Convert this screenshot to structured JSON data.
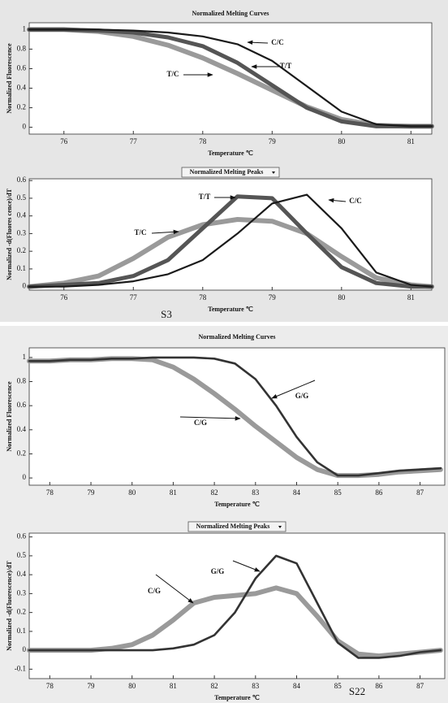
{
  "chart_data": [
    {
      "type": "line",
      "title": "Normalized Melting Curves",
      "xlabel": "Temperature ℃",
      "ylabel": "Normalized Fluorescence",
      "x": [
        75.5,
        76,
        76.5,
        77,
        77.5,
        78,
        78.5,
        79,
        79.5,
        80,
        80.5,
        81,
        81.3
      ],
      "series": [
        {
          "name": "C/C",
          "color": "#1a1a1a",
          "values": [
            1,
            1,
            1,
            0.99,
            0.97,
            0.93,
            0.85,
            0.68,
            0.42,
            0.16,
            0.03,
            0.01,
            0.01
          ]
        },
        {
          "name": "T/T",
          "color": "#555555",
          "values": [
            1,
            1,
            0.99,
            0.97,
            0.92,
            0.83,
            0.66,
            0.43,
            0.2,
            0.06,
            0.01,
            0.01,
            0.01
          ]
        },
        {
          "name": "T/C",
          "color": "#9a9a9a",
          "values": [
            1,
            1,
            0.98,
            0.93,
            0.84,
            0.71,
            0.55,
            0.38,
            0.21,
            0.08,
            0.02,
            0.01,
            0.01
          ]
        }
      ],
      "xlim": [
        75.5,
        81.3
      ],
      "xticks": [
        76,
        77,
        78,
        79,
        80,
        81
      ],
      "ylim": [
        -0.07,
        1.07
      ],
      "yticks": [
        0,
        0.2,
        0.4,
        0.6,
        0.8,
        1
      ]
    },
    {
      "type": "line",
      "title": "Normalized Melting Peaks",
      "xlabel": "Temperature ℃",
      "ylabel": "Normalized -d(Fluores cence)/dT",
      "annotation": "S3",
      "x": [
        75.5,
        76,
        76.5,
        77,
        77.5,
        78,
        78.5,
        79,
        79.5,
        80,
        80.5,
        81,
        81.3
      ],
      "series": [
        {
          "name": "T/T",
          "color": "#555555",
          "values": [
            0,
            0.01,
            0.02,
            0.06,
            0.15,
            0.33,
            0.51,
            0.5,
            0.3,
            0.11,
            0.02,
            0,
            0
          ]
        },
        {
          "name": "C/C",
          "color": "#1a1a1a",
          "values": [
            0,
            0,
            0.01,
            0.03,
            0.07,
            0.15,
            0.3,
            0.47,
            0.52,
            0.33,
            0.08,
            0.01,
            0
          ]
        },
        {
          "name": "T/C",
          "color": "#9a9a9a",
          "values": [
            0,
            0.02,
            0.06,
            0.16,
            0.28,
            0.35,
            0.38,
            0.37,
            0.3,
            0.17,
            0.05,
            0.01,
            0
          ]
        }
      ],
      "xlim": [
        75.5,
        81.3
      ],
      "xticks": [
        76,
        77,
        78,
        79,
        80,
        81
      ],
      "ylim": [
        -0.02,
        0.61
      ],
      "yticks": [
        0,
        0.1,
        0.2,
        0.3,
        0.4,
        0.5,
        0.6
      ]
    },
    {
      "type": "line",
      "title": "Normalized Melting Curves",
      "xlabel": "Temperature ℃",
      "ylabel": "Normalized Fluorescence",
      "x": [
        77.5,
        78,
        78.5,
        79,
        79.5,
        80,
        80.5,
        81,
        81.5,
        82,
        82.5,
        83,
        83.5,
        84,
        84.5,
        85,
        85.5,
        86,
        86.5,
        87,
        87.5
      ],
      "series": [
        {
          "name": "G/G",
          "color": "#333333",
          "values": [
            0.97,
            0.97,
            0.98,
            0.98,
            0.99,
            0.99,
            1,
            1,
            1,
            0.99,
            0.95,
            0.82,
            0.6,
            0.34,
            0.13,
            0.02,
            0.02,
            0.04,
            0.06,
            0.07,
            0.08
          ]
        },
        {
          "name": "C/G",
          "color": "#9a9a9a",
          "values": [
            0.97,
            0.97,
            0.98,
            0.98,
            0.99,
            0.99,
            0.98,
            0.92,
            0.82,
            0.7,
            0.57,
            0.43,
            0.3,
            0.17,
            0.07,
            0.02,
            0.02,
            0.03,
            0.05,
            0.06,
            0.07
          ]
        }
      ],
      "xlim": [
        77.5,
        87.6
      ],
      "xticks": [
        78,
        79,
        80,
        81,
        82,
        83,
        84,
        85,
        86,
        87
      ],
      "ylim": [
        -0.06,
        1.08
      ],
      "yticks": [
        0,
        0.2,
        0.4,
        0.6,
        0.8,
        1
      ]
    },
    {
      "type": "line",
      "title": "Normalized Melting Peaks",
      "xlabel": "Temperature ℃",
      "ylabel": "Normalized -d(Fluorescence)/dT",
      "annotation": "S22",
      "x": [
        77.5,
        78,
        78.5,
        79,
        79.5,
        80,
        80.5,
        81,
        81.5,
        82,
        82.5,
        83,
        83.5,
        84,
        84.5,
        85,
        85.5,
        86,
        86.5,
        87,
        87.5
      ],
      "series": [
        {
          "name": "G/G",
          "color": "#333333",
          "values": [
            0,
            0,
            0,
            0,
            0,
            0,
            0,
            0.01,
            0.03,
            0.08,
            0.2,
            0.38,
            0.5,
            0.46,
            0.25,
            0.04,
            -0.04,
            -0.04,
            -0.03,
            -0.01,
            0
          ]
        },
        {
          "name": "C/G",
          "color": "#9a9a9a",
          "values": [
            0,
            0,
            0,
            0,
            0.01,
            0.03,
            0.08,
            0.16,
            0.25,
            0.28,
            0.29,
            0.3,
            0.33,
            0.3,
            0.18,
            0.05,
            -0.02,
            -0.03,
            -0.02,
            -0.01,
            0
          ]
        }
      ],
      "xlim": [
        77.5,
        87.6
      ],
      "xticks": [
        78,
        79,
        80,
        81,
        82,
        83,
        84,
        85,
        86,
        87
      ],
      "ylim": [
        -0.15,
        0.62
      ],
      "yticks": [
        -0.1,
        0,
        0.1,
        0.2,
        0.3,
        0.4,
        0.5,
        0.6
      ]
    }
  ]
}
